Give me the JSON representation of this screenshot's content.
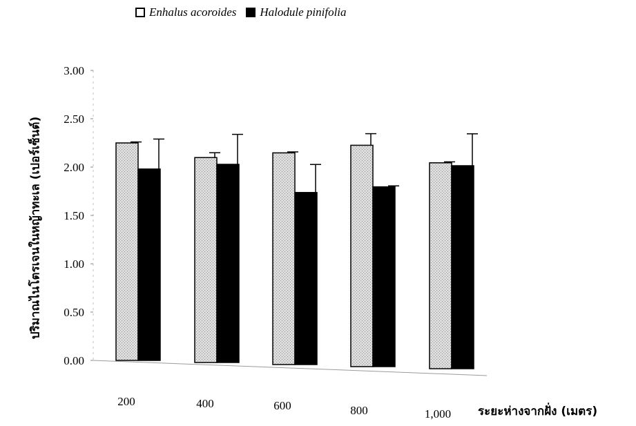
{
  "chart_data": {
    "type": "bar",
    "categories": [
      "200",
      "400",
      "600",
      "800",
      "1,000"
    ],
    "series": [
      {
        "name": "Enhalus acoroides",
        "values": [
          2.25,
          2.12,
          2.19,
          2.29,
          2.13
        ],
        "errors": [
          0.01,
          0.05,
          0.01,
          0.12,
          0.01
        ],
        "color": "#d4d4d4"
      },
      {
        "name": "Halodule pinifolia",
        "values": [
          1.98,
          2.05,
          1.78,
          1.86,
          2.1
        ],
        "errors": [
          0.31,
          0.31,
          0.29,
          0.01,
          0.33
        ],
        "color": "#000000"
      }
    ],
    "yticks": [
      "0.00",
      "0.50",
      "1.00",
      "1.50",
      "2.00",
      "2.50",
      "3.00"
    ],
    "ylim": [
      0,
      3
    ],
    "ylabel": "ปริมาณไนโตรเจนในหญ้าทะเล (เปอร์เซ็นต์)",
    "xlabel": "ระยะห่างจากฝั่ง (เมตร)",
    "grid": false,
    "legend_position": "top"
  }
}
